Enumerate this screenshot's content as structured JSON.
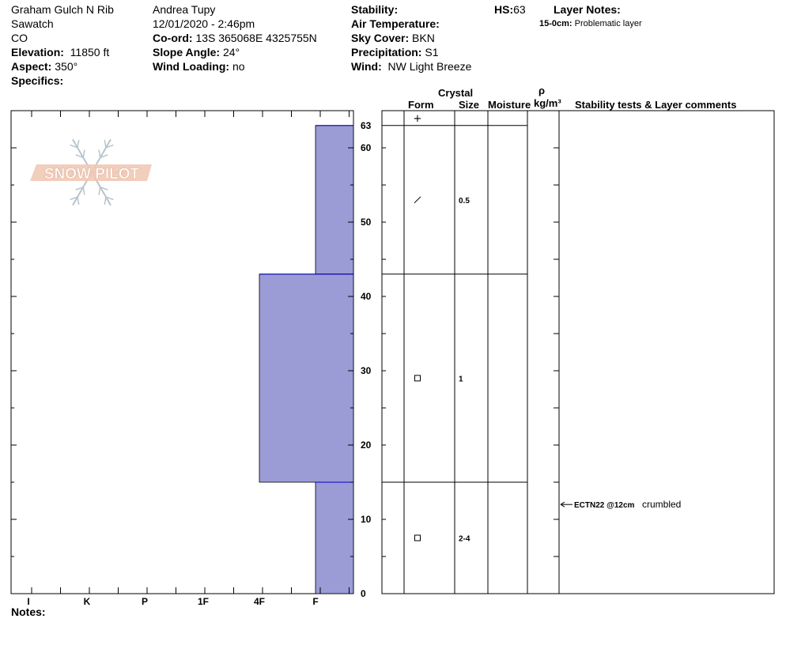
{
  "header": {
    "location": "Graham Gulch N Rib",
    "range": "Sawatch",
    "state": "CO",
    "elevation_label": "Elevation:",
    "elevation_value": "11850 ft",
    "aspect_label": "Aspect:",
    "aspect_value": "350°",
    "specifics_label": "Specifics:",
    "observer": "Andrea Tupy",
    "datetime": "12/01/2020 - 2:46pm",
    "coord_label": "Co-ord:",
    "coord_value": "13S 365068E 4325755N",
    "slope_label": "Slope Angle:",
    "slope_value": "24°",
    "wind_loading_label": "Wind Loading:",
    "wind_loading_value": "no",
    "stability_label": "Stability:",
    "air_temp_label": "Air Temperature:",
    "sky_label": "Sky Cover:",
    "sky_value": "BKN",
    "precip_label": "Precipitation:",
    "precip_value": "S1",
    "wind_label": "Wind:",
    "wind_value": "NW Light Breeze",
    "hs_label": "HS:",
    "hs_value": "63",
    "layer_notes_label": "Layer Notes:",
    "layer_note_range": "15-0cm:",
    "layer_note_text": "Problematic layer"
  },
  "logo": {
    "text": "SNOW PILOT"
  },
  "notes_label": "Notes:",
  "table_headers": {
    "crystal": "Crystal",
    "form": "Form",
    "size": "Size",
    "moisture": "Moisture",
    "rho": "ρ",
    "density_unit": "kg/m³",
    "comments": "Stability tests & Layer comments"
  },
  "chart_data": {
    "type": "hardness-profile",
    "y_axis": {
      "range": [
        0,
        63
      ],
      "ticks": [
        0,
        10,
        20,
        30,
        40,
        50,
        60
      ],
      "top_label": "63",
      "unit": "cm"
    },
    "x_axis": {
      "hardness_labels": [
        "I",
        "K",
        "P",
        "1F",
        "4F",
        "F"
      ]
    },
    "layers": [
      {
        "top": 63,
        "bottom": 43,
        "hardness": "F",
        "form": "/",
        "size": "0.5"
      },
      {
        "top": 43,
        "bottom": 15,
        "hardness": "4F",
        "form": "□",
        "size": "1"
      },
      {
        "top": 15,
        "bottom": 0,
        "hardness": "F",
        "form": "□",
        "size": "2-4"
      }
    ],
    "surface_form": "+",
    "stability_tests": [
      {
        "depth": 12,
        "test": "ECTN22 @12cm",
        "comment": "crumbled"
      }
    ],
    "fill_color": "#9b9bd6",
    "edge_color": "#0000cc"
  }
}
